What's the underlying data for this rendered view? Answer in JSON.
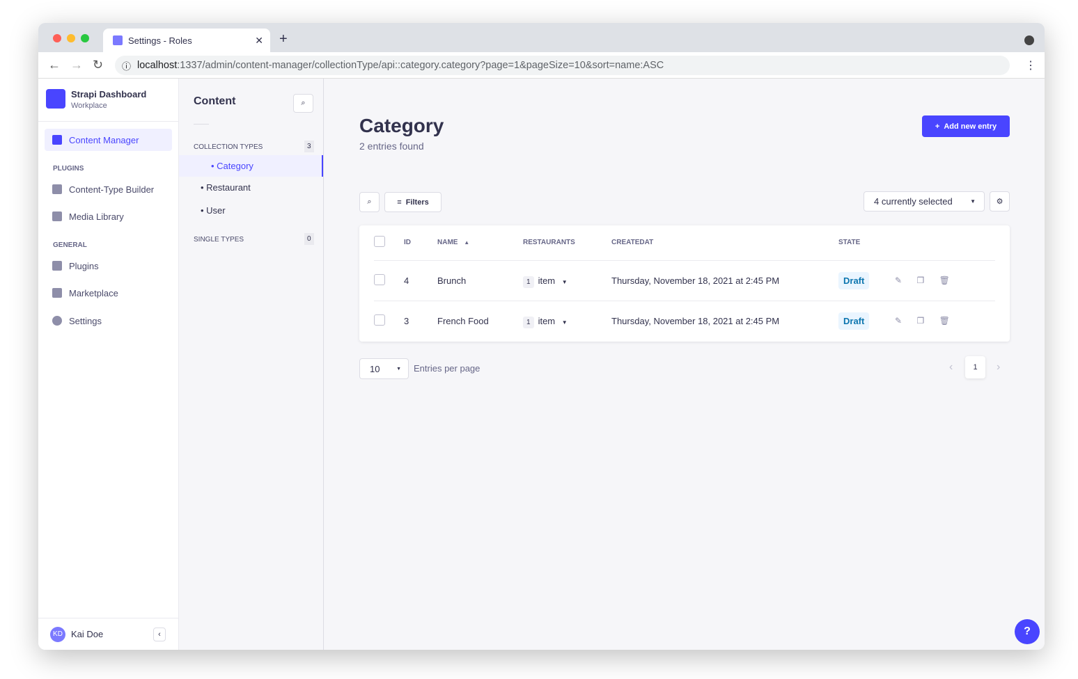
{
  "browser": {
    "tab_title": "Settings - Roles",
    "url_host": "localhost",
    "url_rest": ":1337/admin/content-manager/collectionType/api::category.category?page=1&pageSize=10&sort=name:ASC"
  },
  "sidebar": {
    "brand": "Strapi Dashboard",
    "workspace": "Workplace",
    "active": "Content Manager",
    "plugins_label": "PLUGINS",
    "plugins": [
      "Content-Type Builder",
      "Media Library"
    ],
    "general_label": "GENERAL",
    "general": [
      "Plugins",
      "Marketplace",
      "Settings"
    ],
    "user_initials": "KD",
    "user": "Kai Doe"
  },
  "subnav": {
    "title": "Content",
    "collection_label": "COLLECTION TYPES",
    "collection_count": "3",
    "collections": [
      "Category",
      "Restaurant",
      "User"
    ],
    "single_label": "SINGLE TYPES",
    "single_count": "0"
  },
  "main": {
    "title": "Category",
    "subtitle": "2 entries found",
    "add_button": "Add new entry",
    "filters": "Filters",
    "columns_select": "4 currently selected",
    "headers": [
      "ID",
      "NAME",
      "RESTAURANTS",
      "CREATEDAT",
      "STATE"
    ],
    "rows": [
      {
        "id": "4",
        "name": "Brunch",
        "count": "1",
        "item": "item",
        "created": "Thursday, November 18, 2021 at 2:45 PM",
        "state": "Draft"
      },
      {
        "id": "3",
        "name": "French Food",
        "count": "1",
        "item": "item",
        "created": "Thursday, November 18, 2021 at 2:45 PM",
        "state": "Draft"
      }
    ],
    "page_size": "10",
    "entries_per_page": "Entries per page",
    "page": "1"
  },
  "colors": {
    "primary": "#4945ff",
    "draft_bg": "#eaf5ff",
    "draft_text": "#0c75af"
  }
}
